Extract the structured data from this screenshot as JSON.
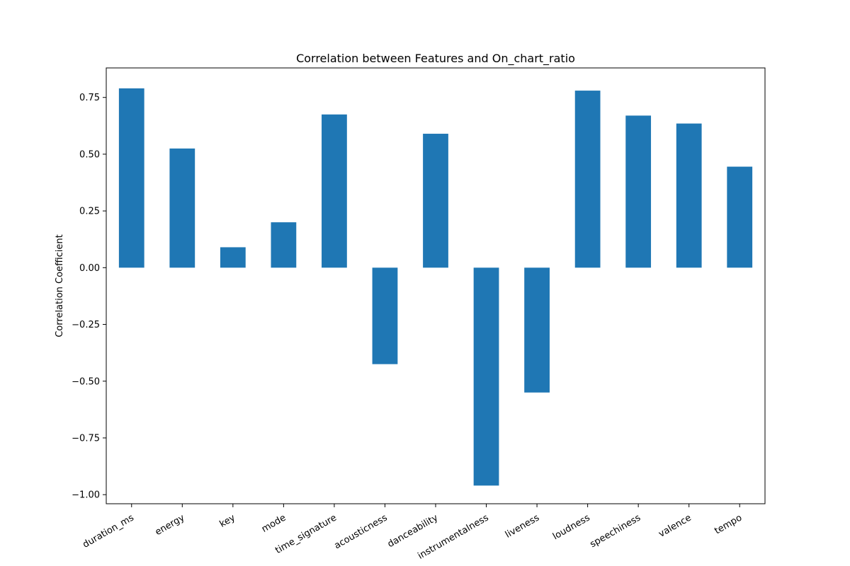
{
  "chart_data": {
    "type": "bar",
    "title": "Correlation between Features and On_chart_ratio",
    "xlabel": "",
    "ylabel": "Correlation Coefficient",
    "categories": [
      "duration_ms",
      "energy",
      "key",
      "mode",
      "time_signature",
      "acousticness",
      "danceability",
      "instrumentalness",
      "liveness",
      "loudness",
      "speechiness",
      "valence",
      "tempo"
    ],
    "values": [
      0.79,
      0.525,
      0.09,
      0.2,
      0.675,
      -0.425,
      0.59,
      -0.96,
      -0.55,
      0.78,
      0.67,
      0.635,
      0.445
    ],
    "ylim": [
      -1.04,
      0.88
    ],
    "yticks": [
      "-1.00",
      "-0.75",
      "-0.50",
      "-0.25",
      "0.00",
      "0.25",
      "0.50",
      "0.75"
    ],
    "bar_color": "#1f77b4",
    "grid": false,
    "legend": false
  }
}
